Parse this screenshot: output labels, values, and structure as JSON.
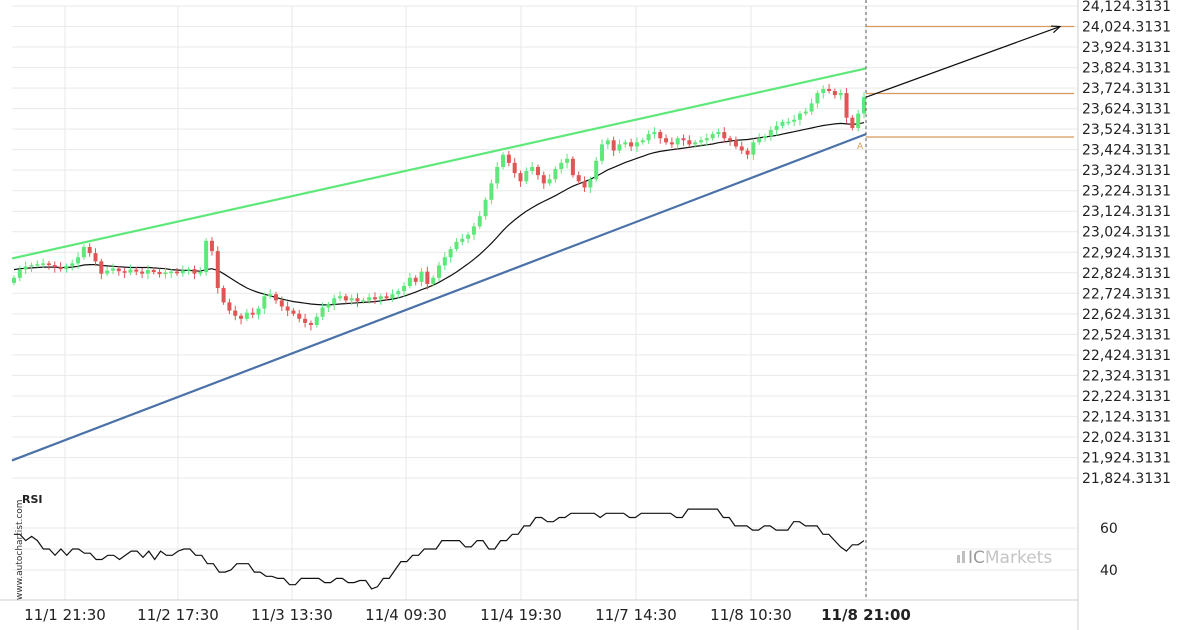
{
  "chart_data": [
    {
      "type": "candlestick",
      "title": "",
      "instrument": "",
      "price_axis": {
        "side": "right",
        "ticks": [
          "24,124.3131",
          "24,024.3131",
          "23,924.3131",
          "23,824.3131",
          "23,724.3131",
          "23,624.3131",
          "23,524.3131",
          "23,424.3131",
          "23,324.3131",
          "23,224.3131",
          "23,124.3131",
          "23,024.3131",
          "22,924.3131",
          "22,824.3131",
          "22,724.3131",
          "22,624.3131",
          "22,524.3131",
          "22,424.3131",
          "22,324.3131",
          "22,224.3131",
          "22,124.3131",
          "22,024.3131",
          "21,924.3131",
          "21,824.3131"
        ],
        "ylim": [
          21824.3131,
          24124.3131
        ]
      },
      "x_axis": {
        "ticks": [
          "11/1 21:30",
          "11/2 17:30",
          "11/3 13:30",
          "11/4 09:30",
          "11/4 19:30",
          "11/7 14:30",
          "11/8 10:30",
          "11/8 21:00"
        ],
        "highlight": "11/8 21:00"
      },
      "grid": true,
      "upper_trendline": {
        "start": 22894,
        "end": 23820,
        "color": "#5ee87a"
      },
      "lower_trendline": {
        "start": 21910,
        "end": 23500,
        "color": "#4a72a8"
      },
      "target_levels": [
        24024.3131,
        23698,
        23486
      ],
      "level_color": "#d89a5c",
      "projection_end": 24024.3131,
      "marker_label": "A",
      "candle_colors": {
        "up": "#5ee87a",
        "down": "#e05555"
      },
      "closes": [
        22800,
        22840,
        22855,
        22862,
        22866,
        22870,
        22862,
        22852,
        22842,
        22858,
        22870,
        22900,
        22950,
        22920,
        22880,
        22820,
        22835,
        22845,
        22832,
        22825,
        22840,
        22830,
        22820,
        22838,
        22828,
        22818,
        22826,
        22830,
        22822,
        22836,
        22842,
        22820,
        22828,
        22980,
        22930,
        22750,
        22680,
        22640,
        22615,
        22600,
        22630,
        22620,
        22650,
        22710,
        22720,
        22690,
        22660,
        22640,
        22625,
        22600,
        22580,
        22570,
        22610,
        22655,
        22670,
        22700,
        22710,
        22690,
        22700,
        22685,
        22690,
        22705,
        22695,
        22710,
        22700,
        22720,
        22735,
        22760,
        22800,
        22780,
        22830,
        22770,
        22800,
        22860,
        22900,
        22940,
        22975,
        22990,
        23010,
        23050,
        23100,
        23180,
        23260,
        23340,
        23400,
        23360,
        23310,
        23270,
        23320,
        23340,
        23300,
        23260,
        23280,
        23330,
        23360,
        23380,
        23300,
        23270,
        23240,
        23280,
        23370,
        23450,
        23470,
        23420,
        23450,
        23460,
        23440,
        23460,
        23470,
        23500,
        23510,
        23480,
        23460,
        23450,
        23480,
        23470,
        23450,
        23460,
        23470,
        23480,
        23500,
        23510,
        23480,
        23470,
        23440,
        23420,
        23400,
        23460,
        23480,
        23490,
        23520,
        23540,
        23560,
        23560,
        23570,
        23600,
        23610,
        23650,
        23700,
        23720,
        23710,
        23690,
        23700,
        23580,
        23530,
        23600,
        23680
      ],
      "ma": [
        22840,
        22844,
        22846,
        22848,
        22850,
        22852,
        22852,
        22852,
        22850,
        22850,
        22852,
        22856,
        22862,
        22864,
        22864,
        22860,
        22858,
        22856,
        22854,
        22852,
        22850,
        22850,
        22850,
        22850,
        22848,
        22846,
        22844,
        22840,
        22838,
        22836,
        22836,
        22834,
        22832,
        22840,
        22844,
        22836,
        22820,
        22802,
        22784,
        22766,
        22750,
        22738,
        22728,
        22720,
        22712,
        22704,
        22696,
        22690,
        22684,
        22680,
        22676,
        22672,
        22670,
        22668,
        22668,
        22670,
        22672,
        22674,
        22676,
        22678,
        22680,
        22682,
        22684,
        22688,
        22692,
        22696,
        22702,
        22710,
        22720,
        22730,
        22742,
        22752,
        22764,
        22778,
        22794,
        22810,
        22828,
        22848,
        22868,
        22890,
        22914,
        22940,
        22968,
        22998,
        23030,
        23058,
        23082,
        23104,
        23124,
        23142,
        23158,
        23172,
        23186,
        23200,
        23216,
        23232,
        23246,
        23258,
        23268,
        23280,
        23294,
        23310,
        23326,
        23338,
        23350,
        23362,
        23372,
        23382,
        23392,
        23402,
        23410,
        23416,
        23420,
        23424,
        23428,
        23432,
        23436,
        23440,
        23444,
        23448,
        23452,
        23458,
        23462,
        23466,
        23470,
        23472,
        23474,
        23478,
        23482,
        23486,
        23490,
        23494,
        23500,
        23506,
        23512,
        23518,
        23524,
        23530,
        23536,
        23542,
        23546,
        23550,
        23552,
        23550,
        23548,
        23550,
        23556
      ]
    },
    {
      "type": "line",
      "series_label": "RSI",
      "y_ticks": [
        60,
        50,
        40
      ],
      "values": [
        57,
        57,
        54,
        56,
        54,
        50,
        50,
        47,
        50,
        47,
        50,
        50,
        48,
        48,
        45,
        45,
        47,
        47,
        45,
        47,
        49,
        49,
        46,
        49,
        45,
        49,
        47,
        47,
        49,
        50,
        50,
        47,
        47,
        43,
        43,
        39,
        39,
        40,
        43,
        43,
        43,
        39,
        39,
        37,
        37,
        36,
        36,
        33,
        33,
        36,
        36,
        36,
        36,
        34,
        34,
        36,
        36,
        34,
        34,
        35,
        35,
        31,
        32,
        36,
        36,
        40,
        44,
        44,
        47,
        47,
        50,
        50,
        50,
        54,
        54,
        54,
        54,
        51,
        51,
        54,
        54,
        50,
        50,
        54,
        54,
        57,
        57,
        61,
        61,
        65,
        65,
        63,
        63,
        65,
        65,
        67,
        67,
        67,
        67,
        67,
        65,
        67,
        67,
        67,
        67,
        65,
        65,
        67,
        67,
        67,
        67,
        67,
        67,
        65,
        65,
        69,
        69,
        69,
        69,
        69,
        69,
        65,
        65,
        61,
        61,
        61,
        59,
        59,
        61,
        61,
        59,
        59,
        59,
        63,
        63,
        61,
        61,
        61,
        57,
        57,
        54,
        51,
        49,
        52,
        52,
        54
      ]
    }
  ],
  "branding": {
    "watermark": "www.autochartist.com",
    "logo_prefix": "IC",
    "logo_suffix": "Markets"
  }
}
